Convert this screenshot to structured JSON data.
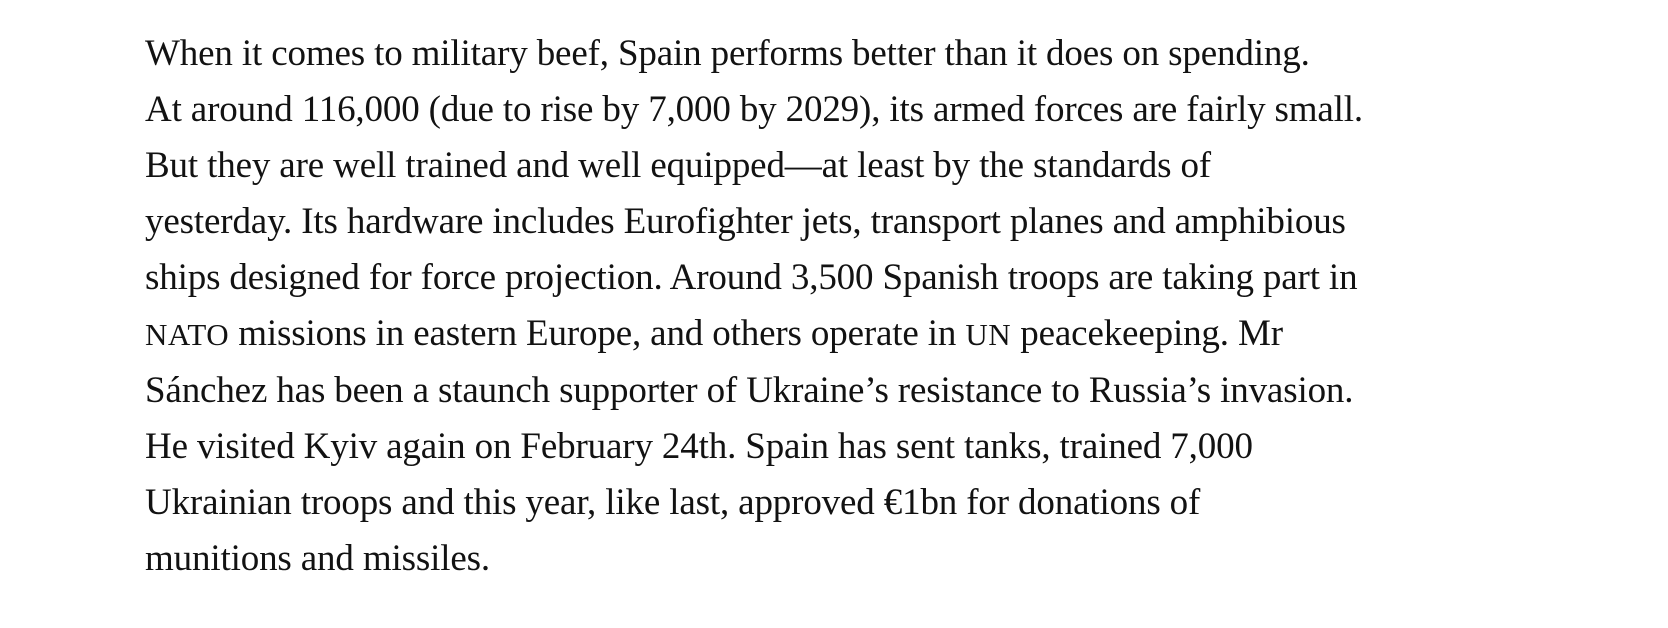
{
  "article": {
    "paragraph_lines": [
      "When it comes to military beef, Spain performs better than it does on spending.",
      "At around 116,000 (due to rise by 7,000 by 2029), its armed forces are fairly small.",
      "But they are well trained and well equipped—at least by the standards of",
      "yesterday. Its hardware includes Eurofighter jets, transport planes and amphibious",
      "ships designed for force projection. Around 3,500 Spanish troops are taking part in",
      {
        "abbr1": "NATO",
        "mid": " missions in eastern Europe, and others operate in ",
        "abbr2": "UN",
        "end": " peacekeeping. Mr"
      },
      "Sánchez has been a staunch supporter of Ukraine’s resistance to Russia’s invasion.",
      "He visited Kyiv again on February 24th. Spain has sent tanks, trained 7,000",
      "Ukrainian troops and this year, like last, approved €1bn for donations of",
      "munitions and missiles."
    ]
  }
}
